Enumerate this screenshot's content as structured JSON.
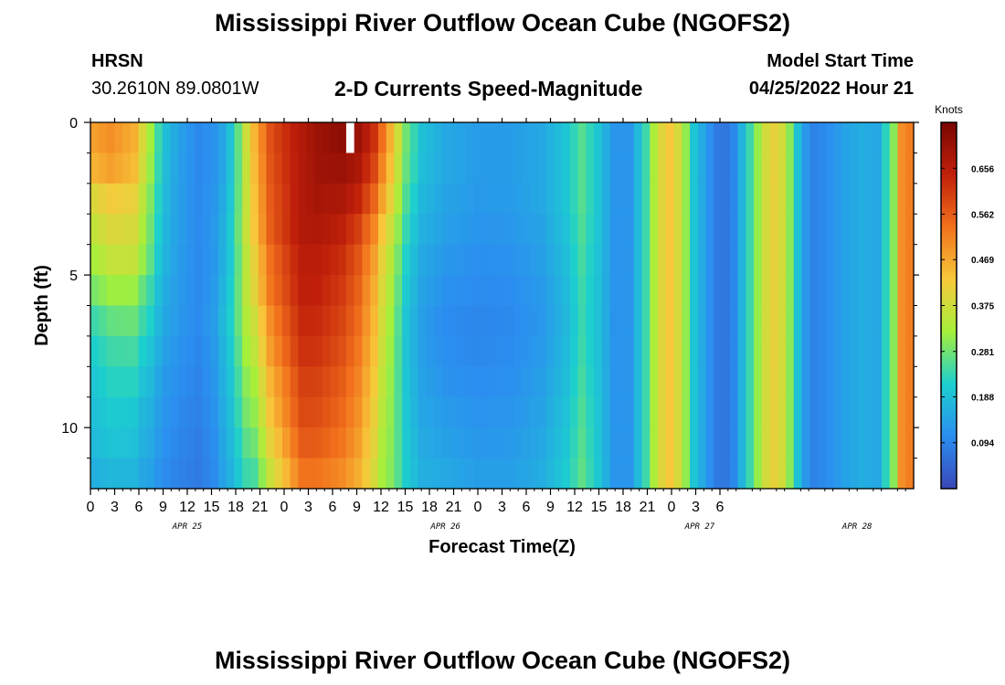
{
  "page": {
    "title_top": "Mississippi River Outflow Ocean Cube (NGOFS2)",
    "title_bottom": "Mississippi River Outflow Ocean Cube (NGOFS2)",
    "station_name": "HRSN",
    "station_coords": "30.2610N  89.0801W",
    "start_label": "Model Start Time",
    "start_value": "04/25/2022 Hour 21"
  },
  "colors": {
    "colormap": [
      "#3a47b8",
      "#2b8ef0",
      "#1ccfcf",
      "#a5f03a",
      "#f8c93a",
      "#f2711c",
      "#c1200a",
      "#7a0603"
    ],
    "background": "#ffffff",
    "axis": "#000000"
  },
  "chart_data": {
    "type": "heatmap",
    "title": "2-D Currents Speed-Magnitude",
    "xlabel": "Forecast Time(Z)",
    "ylabel": "Depth (ft)",
    "x_range_hours": [
      0,
      102
    ],
    "x_start": "04/25/2022 00Z",
    "x_tick_labels": [
      "0",
      "3",
      "6",
      "9",
      "12",
      "15",
      "18",
      "21",
      "0",
      "3",
      "6",
      "9",
      "12",
      "15",
      "18",
      "21",
      "0",
      "3",
      "6",
      "9",
      "12",
      "15",
      "18",
      "21",
      "0",
      "3",
      "6"
    ],
    "day_labels": [
      {
        "text": "APR 25",
        "hour": 12
      },
      {
        "text": "APR 26",
        "hour": 44
      },
      {
        "text": "APR 27",
        "hour": 75.5
      },
      {
        "text": "APR 28",
        "hour": 95
      }
    ],
    "y_range": [
      0,
      12
    ],
    "y_major_ticks": [
      0,
      5,
      10
    ],
    "y_minor_ticks": [
      1,
      2,
      3,
      4,
      6,
      7,
      8,
      9,
      11
    ],
    "colorbar_label": "Knots",
    "colorbar_range": [
      0,
      0.75
    ],
    "colorbar_ticks": [
      0.094,
      0.188,
      0.281,
      0.375,
      0.469,
      0.562,
      0.656
    ],
    "missing_cells": [
      {
        "hour": 32,
        "depth": 0
      }
    ],
    "time_profile": [
      {
        "t": 0,
        "v": 0.48
      },
      {
        "t": 2,
        "v": 0.5
      },
      {
        "t": 5,
        "v": 0.46
      },
      {
        "t": 7,
        "v": 0.32
      },
      {
        "t": 8.5,
        "v": 0.2
      },
      {
        "t": 10.5,
        "v": 0.14
      },
      {
        "t": 13,
        "v": 0.1
      },
      {
        "t": 15.5,
        "v": 0.12
      },
      {
        "t": 17.5,
        "v": 0.22
      },
      {
        "t": 19.5,
        "v": 0.42
      },
      {
        "t": 22,
        "v": 0.58
      },
      {
        "t": 25,
        "v": 0.65
      },
      {
        "t": 28,
        "v": 0.7
      },
      {
        "t": 31,
        "v": 0.72
      },
      {
        "t": 33,
        "v": 0.7
      },
      {
        "t": 35,
        "v": 0.62
      },
      {
        "t": 37,
        "v": 0.46
      },
      {
        "t": 39,
        "v": 0.28
      },
      {
        "t": 41,
        "v": 0.19
      },
      {
        "t": 44,
        "v": 0.15
      },
      {
        "t": 48,
        "v": 0.13
      },
      {
        "t": 52,
        "v": 0.13
      },
      {
        "t": 56,
        "v": 0.15
      },
      {
        "t": 59,
        "v": 0.2
      },
      {
        "t": 61,
        "v": 0.26
      },
      {
        "t": 63,
        "v": 0.2
      },
      {
        "t": 65,
        "v": 0.12
      },
      {
        "t": 67,
        "v": 0.12
      },
      {
        "t": 69,
        "v": 0.24
      },
      {
        "t": 70.5,
        "v": 0.38
      },
      {
        "t": 72,
        "v": 0.43
      },
      {
        "t": 73.5,
        "v": 0.36
      },
      {
        "t": 75,
        "v": 0.2
      },
      {
        "t": 77,
        "v": 0.11
      },
      {
        "t": 78.5,
        "v": 0.06
      },
      {
        "t": 80,
        "v": 0.1
      },
      {
        "t": 82,
        "v": 0.24
      },
      {
        "t": 84,
        "v": 0.38
      },
      {
        "t": 85.5,
        "v": 0.42
      },
      {
        "t": 87,
        "v": 0.3
      },
      {
        "t": 88.5,
        "v": 0.14
      },
      {
        "t": 90,
        "v": 0.09
      },
      {
        "t": 92,
        "v": 0.11
      },
      {
        "t": 94,
        "v": 0.14
      },
      {
        "t": 96,
        "v": 0.16
      },
      {
        "t": 98,
        "v": 0.15
      },
      {
        "t": 100,
        "v": 0.3
      },
      {
        "t": 101,
        "v": 0.5
      },
      {
        "t": 102,
        "v": 0.52
      }
    ],
    "depth_factor": [
      {
        "t": 0,
        "f": [
          1.0,
          0.95,
          0.82,
          0.75,
          0.68,
          0.6,
          0.5,
          0.45,
          0.42,
          0.4,
          0.38,
          0.34,
          0.3
        ]
      },
      {
        "t": 6,
        "f": [
          1.0,
          0.97,
          0.9,
          0.85,
          0.8,
          0.7,
          0.62,
          0.55,
          0.5,
          0.45,
          0.42,
          0.38,
          0.35
        ]
      },
      {
        "t": 16,
        "f": [
          1.0,
          1.0,
          1.05,
          1.1,
          1.1,
          1.15,
          1.2,
          1.15,
          1.1,
          1.05,
          1.0,
          0.95,
          0.85
        ]
      },
      {
        "t": 20,
        "f": [
          1.0,
          0.98,
          0.96,
          0.95,
          0.9,
          0.88,
          0.82,
          0.78,
          0.72,
          0.68,
          0.62,
          0.55,
          0.45
        ]
      },
      {
        "t": 26,
        "f": [
          1.0,
          1.0,
          1.0,
          1.0,
          0.98,
          0.97,
          0.95,
          0.93,
          0.9,
          0.88,
          0.85,
          0.8,
          0.55
        ]
      },
      {
        "t": 36,
        "f": [
          1.0,
          0.95,
          0.88,
          0.8,
          0.75,
          0.72,
          0.7,
          0.68,
          0.66,
          0.64,
          0.62,
          0.6,
          0.5
        ]
      },
      {
        "t": 44,
        "f": [
          1.0,
          1.0,
          0.95,
          0.9,
          0.82,
          0.76,
          0.7,
          0.72,
          0.78,
          0.85,
          0.92,
          1.0,
          1.05
        ]
      },
      {
        "t": 56,
        "f": [
          1.0,
          1.0,
          1.0,
          0.95,
          0.9,
          0.85,
          0.82,
          0.85,
          0.9,
          0.95,
          1.0,
          1.05,
          1.1
        ]
      },
      {
        "t": 66,
        "f": [
          1.0,
          1.0,
          1.0,
          1.0,
          1.0,
          1.0,
          1.0,
          1.0,
          1.0,
          1.0,
          1.0,
          1.0,
          1.0
        ]
      },
      {
        "t": 102,
        "f": [
          1.0,
          1.0,
          1.0,
          1.0,
          1.0,
          1.0,
          1.0,
          1.0,
          1.0,
          1.0,
          1.0,
          1.0,
          1.0
        ]
      }
    ]
  }
}
